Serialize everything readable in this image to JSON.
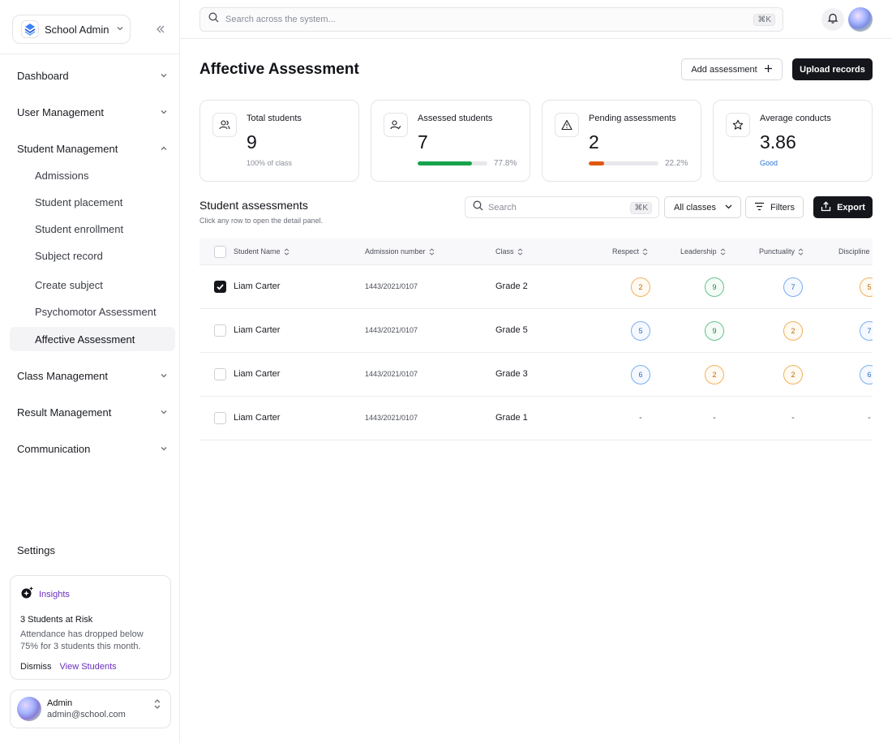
{
  "brand": {
    "name": "School Admin"
  },
  "sidebar": {
    "nav": [
      {
        "label": "Dashboard"
      },
      {
        "label": "User Management"
      },
      {
        "label": "Student Management"
      },
      {
        "label": "Class Management"
      },
      {
        "label": "Result Management"
      },
      {
        "label": "Communication"
      }
    ],
    "student_sub": [
      {
        "label": "Admissions"
      },
      {
        "label": "Student placement"
      },
      {
        "label": "Student enrollment"
      },
      {
        "label": "Subject record"
      },
      {
        "label": "Create subject"
      },
      {
        "label": "Psychomotor Assessment"
      },
      {
        "label": "Affective Assessment"
      }
    ],
    "settings": "Settings",
    "insights": {
      "label": "Insights",
      "title": "3 Students at Risk",
      "text": "Attendance has dropped below 75% for 3 students this month.",
      "dismiss": "Dismiss",
      "view": "View Students"
    },
    "user": {
      "name": "Admin",
      "email": "admin@school.com"
    }
  },
  "topbar": {
    "search_placeholder": "Search across the system...",
    "search_shortcut": "⌘K"
  },
  "page": {
    "title": "Affective Assessment",
    "add_button": "Add assessment",
    "upload_button": "Upload records"
  },
  "stats": [
    {
      "label": "Total students",
      "value": "9",
      "sub": "100% of class"
    },
    {
      "label": "Assessed students",
      "value": "7",
      "pct": "77.8%",
      "progress": 0.778,
      "color": "#16a34a"
    },
    {
      "label": "Pending assessments",
      "value": "2",
      "pct": "22.2%",
      "progress": 0.222,
      "color": "#e0580f"
    },
    {
      "label": "Average conducts",
      "value": "3.86",
      "sub": "Good"
    }
  ],
  "table_section": {
    "title": "Student assessments",
    "subtitle": "Click any row to open the detail panel.",
    "search_placeholder": "Search",
    "search_shortcut": "⌘K",
    "class_filter": "All classes",
    "filters_button": "Filters",
    "export_button": "Export"
  },
  "table": {
    "headers": [
      "Student Name",
      "Admission number",
      "Class",
      "Respect",
      "Leadership",
      "Punctuality",
      "Discipline"
    ],
    "rows": [
      {
        "checked": true,
        "name": "Liam Carter",
        "admission": "1443/2021/0107",
        "class": "Grade 2",
        "scores": [
          "2",
          "9",
          "7",
          "5"
        ],
        "tones": [
          "orange",
          "green",
          "blue",
          "orange"
        ]
      },
      {
        "checked": false,
        "name": "Liam Carter",
        "admission": "1443/2021/0107",
        "class": "Grade 5",
        "scores": [
          "5",
          "9",
          "2",
          "7"
        ],
        "tones": [
          "blue",
          "green",
          "orange",
          "blue"
        ]
      },
      {
        "checked": false,
        "name": "Liam Carter",
        "admission": "1443/2021/0107",
        "class": "Grade 3",
        "scores": [
          "6",
          "2",
          "2",
          "6"
        ],
        "tones": [
          "blue",
          "orange",
          "orange",
          "blue"
        ]
      },
      {
        "checked": false,
        "name": "Liam Carter",
        "admission": "1443/2021/0107",
        "class": "Grade 1",
        "scores": [
          "-",
          "-",
          "-",
          "-"
        ],
        "tones": [
          "none",
          "none",
          "none",
          "none"
        ]
      }
    ]
  }
}
